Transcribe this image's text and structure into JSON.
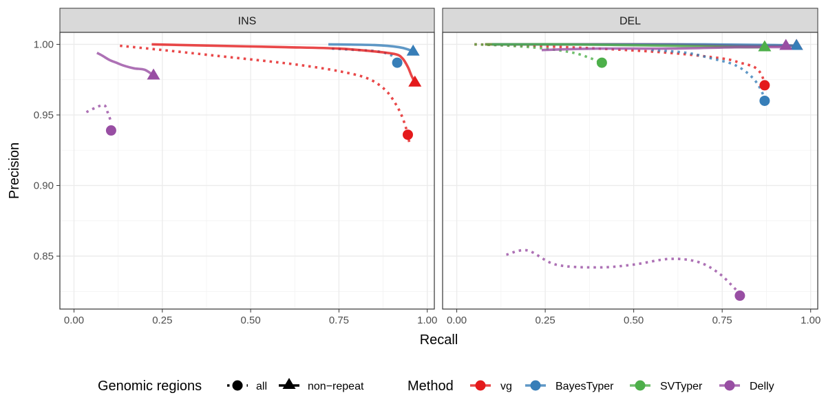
{
  "chart_data": {
    "type": "line",
    "xlabel": "Recall",
    "ylabel": "Precision",
    "xlim": [
      -0.04,
      1.02
    ],
    "ylim": [
      0.8125,
      1.0085
    ],
    "x_ticks": [
      0,
      0.25,
      0.5,
      0.75,
      1
    ],
    "x_tick_labels": [
      "0.00",
      "0.25",
      "0.50",
      "0.75",
      "1.00"
    ],
    "y_ticks": [
      0.85,
      0.9,
      0.95,
      1.0
    ],
    "y_tick_labels": [
      "0.85",
      "0.90",
      "0.95",
      "1.00"
    ],
    "grid": true,
    "legend_position": "bottom",
    "legend_regions": {
      "title": "Genomic regions",
      "entries": [
        {
          "key": "all",
          "label": "all",
          "linestyle": "dotted",
          "marker": "circle"
        },
        {
          "key": "nonrepeat",
          "label": "non−repeat",
          "linestyle": "solid",
          "marker": "triangle"
        }
      ]
    },
    "legend_methods": {
      "title": "Method",
      "entries": [
        {
          "key": "vg",
          "label": "vg",
          "color": "#E41A1C"
        },
        {
          "key": "BayesTyper",
          "label": "BayesTyper",
          "color": "#377EB8"
        },
        {
          "key": "SVTyper",
          "label": "SVTyper",
          "color": "#4DAF4A"
        },
        {
          "key": "Delly",
          "label": "Delly",
          "color": "#984EA3"
        }
      ]
    },
    "panels": [
      {
        "label": "INS",
        "series": [
          {
            "method": "vg",
            "region": "all",
            "curve": [
              [
                0.13,
                0.999
              ],
              [
                0.25,
                0.996
              ],
              [
                0.4,
                0.992
              ],
              [
                0.55,
                0.988
              ],
              [
                0.65,
                0.985
              ],
              [
                0.75,
                0.981
              ],
              [
                0.83,
                0.976
              ],
              [
                0.88,
                0.968
              ],
              [
                0.91,
                0.958
              ],
              [
                0.93,
                0.948
              ],
              [
                0.945,
                0.936
              ],
              [
                0.95,
                0.928
              ]
            ],
            "point": [
              0.945,
              0.936
            ]
          },
          {
            "method": "vg",
            "region": "nonrepeat",
            "curve": [
              [
                0.22,
                1.0
              ],
              [
                0.4,
                0.999
              ],
              [
                0.6,
                0.998
              ],
              [
                0.75,
                0.997
              ],
              [
                0.85,
                0.995
              ],
              [
                0.91,
                0.993
              ],
              [
                0.93,
                0.99
              ],
              [
                0.945,
                0.984
              ],
              [
                0.955,
                0.978
              ],
              [
                0.965,
                0.973
              ]
            ],
            "point": [
              0.965,
              0.973
            ]
          },
          {
            "method": "BayesTyper",
            "region": "all",
            "curve": [
              [
                0.73,
                0.997
              ],
              [
                0.8,
                0.996
              ],
              [
                0.86,
                0.995
              ],
              [
                0.9,
                0.992
              ],
              [
                0.915,
                0.987
              ]
            ],
            "point": [
              0.915,
              0.987
            ]
          },
          {
            "method": "BayesTyper",
            "region": "nonrepeat",
            "curve": [
              [
                0.72,
                1.0
              ],
              [
                0.85,
                0.9995
              ],
              [
                0.92,
                0.998
              ],
              [
                0.95,
                0.996
              ],
              [
                0.96,
                0.995
              ]
            ],
            "point": [
              0.96,
              0.995
            ]
          },
          {
            "method": "Delly",
            "region": "all",
            "curve": [
              [
                0.035,
                0.952
              ],
              [
                0.06,
                0.955
              ],
              [
                0.085,
                0.957
              ],
              [
                0.095,
                0.952
              ],
              [
                0.105,
                0.945
              ]
            ],
            "point": [
              0.105,
              0.939
            ]
          },
          {
            "method": "Delly",
            "region": "nonrepeat",
            "curve": [
              [
                0.065,
                0.994
              ],
              [
                0.08,
                0.992
              ],
              [
                0.1,
                0.989
              ],
              [
                0.12,
                0.987
              ],
              [
                0.14,
                0.985
              ],
              [
                0.17,
                0.983
              ],
              [
                0.2,
                0.982
              ],
              [
                0.225,
                0.978
              ]
            ],
            "point": [
              0.225,
              0.978
            ]
          }
        ]
      },
      {
        "label": "DEL",
        "series": [
          {
            "method": "vg",
            "region": "all",
            "curve": [
              [
                0.05,
                1.0
              ],
              [
                0.2,
                0.999
              ],
              [
                0.4,
                0.997
              ],
              [
                0.6,
                0.994
              ],
              [
                0.75,
                0.99
              ],
              [
                0.8,
                0.987
              ],
              [
                0.84,
                0.984
              ],
              [
                0.86,
                0.979
              ],
              [
                0.87,
                0.972
              ]
            ],
            "point": [
              0.87,
              0.971
            ]
          },
          {
            "method": "vg",
            "region": "nonrepeat",
            "curve": [
              [
                0.08,
                1.0
              ],
              [
                0.3,
                1.0
              ],
              [
                0.6,
                1.0
              ],
              [
                0.8,
                0.999
              ],
              [
                0.9,
                0.999
              ],
              [
                0.96,
                0.999
              ]
            ],
            "point": [
              0.96,
              0.999
            ]
          },
          {
            "method": "BayesTyper",
            "region": "all",
            "curve": [
              [
                0.55,
                0.996
              ],
              [
                0.65,
                0.994
              ],
              [
                0.72,
                0.99
              ],
              [
                0.78,
                0.986
              ],
              [
                0.82,
                0.98
              ],
              [
                0.85,
                0.972
              ],
              [
                0.87,
                0.962
              ]
            ],
            "point": [
              0.87,
              0.96
            ]
          },
          {
            "method": "BayesTyper",
            "region": "nonrepeat",
            "curve": [
              [
                0.1,
                1.0
              ],
              [
                0.4,
                1.0
              ],
              [
                0.7,
                1.0
              ],
              [
                0.9,
                0.9995
              ],
              [
                0.96,
                0.999
              ]
            ],
            "point": [
              0.96,
              0.999
            ]
          },
          {
            "method": "SVTyper",
            "region": "all",
            "curve": [
              [
                0.05,
                1.0
              ],
              [
                0.15,
                0.999
              ],
              [
                0.25,
                0.997
              ],
              [
                0.33,
                0.994
              ],
              [
                0.38,
                0.99
              ],
              [
                0.41,
                0.987
              ]
            ],
            "point": [
              0.41,
              0.987
            ]
          },
          {
            "method": "SVTyper",
            "region": "nonrepeat",
            "curve": [
              [
                0.08,
                1.0
              ],
              [
                0.3,
                1.0
              ],
              [
                0.6,
                0.999
              ],
              [
                0.8,
                0.998
              ],
              [
                0.87,
                0.998
              ]
            ],
            "point": [
              0.87,
              0.998
            ]
          },
          {
            "method": "Delly",
            "region": "all",
            "curve": [
              [
                0.14,
                0.851
              ],
              [
                0.2,
                0.854
              ],
              [
                0.28,
                0.844
              ],
              [
                0.4,
                0.842
              ],
              [
                0.5,
                0.844
              ],
              [
                0.6,
                0.848
              ],
              [
                0.68,
                0.846
              ],
              [
                0.74,
                0.838
              ],
              [
                0.79,
                0.826
              ]
            ],
            "point": [
              0.8,
              0.822
            ]
          },
          {
            "method": "Delly",
            "region": "nonrepeat",
            "curve": [
              [
                0.24,
                0.996
              ],
              [
                0.4,
                0.997
              ],
              [
                0.6,
                0.997
              ],
              [
                0.8,
                0.998
              ],
              [
                0.93,
                0.998
              ]
            ],
            "point": [
              0.93,
              0.999
            ]
          }
        ]
      }
    ]
  }
}
